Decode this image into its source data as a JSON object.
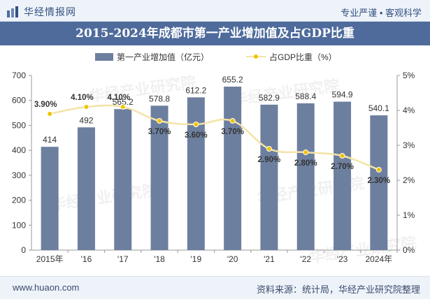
{
  "header": {
    "brand": "华经情报网",
    "slogan": "专业严谨 • 客观科学"
  },
  "title": "2015-2024年成都市第一产业增加值及占GDP比重",
  "footer": {
    "site": "www.huaon.com",
    "source": "资料来源：统计局，华经产业研究院整理"
  },
  "watermark": "华经产业研究院",
  "colors": {
    "bar": "#6d7f9f",
    "line": "#f3e3a6",
    "marker": "#f2c200",
    "title_bg": "#4f6b9c"
  },
  "chart_data": {
    "type": "bar",
    "categories": [
      "2015年",
      "'16",
      "'17",
      "'18",
      "'19",
      "'20",
      "'21",
      "'22",
      "'23",
      "2024年"
    ],
    "series": [
      {
        "name": "第一产业增加值（亿元）",
        "type": "bar",
        "axis": "left",
        "values": [
          414,
          492,
          565.2,
          578.8,
          612.2,
          655.2,
          582.9,
          588.4,
          594.9,
          540.1
        ],
        "labels": [
          "414",
          "492",
          "565.2",
          "578.8",
          "612.2",
          "655.2",
          "582.9",
          "588.4",
          "594.9",
          "540.1"
        ]
      },
      {
        "name": "占GDP比重（%）",
        "type": "line",
        "axis": "right",
        "values": [
          3.9,
          4.1,
          4.1,
          3.7,
          3.6,
          3.7,
          2.9,
          2.8,
          2.7,
          2.3
        ],
        "labels": [
          "3.90%",
          "4.10%",
          "4.10%",
          "3.70%",
          "3.60%",
          "3.70%",
          "2.90%",
          "2.80%",
          "2.70%",
          "2.30%"
        ]
      }
    ],
    "y_left": {
      "min": 0,
      "max": 700,
      "ticks": [
        "0",
        "100",
        "200",
        "300",
        "400",
        "500",
        "600",
        "700"
      ]
    },
    "y_right": {
      "min": 0,
      "max": 5,
      "ticks": [
        "0%",
        "1%",
        "2%",
        "3%",
        "4%",
        "5%"
      ]
    },
    "legend_position": "top-center",
    "grid": false
  }
}
